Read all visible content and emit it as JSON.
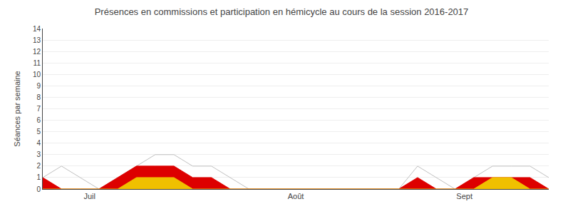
{
  "chart_data": {
    "type": "line",
    "title": "Présences en commissions et participation en hémicycle au cours de la session 2016-2017",
    "ylabel": "Séances par semaine",
    "x": [
      0,
      1,
      2,
      3,
      4,
      5,
      6,
      7,
      8,
      9,
      10,
      11,
      12,
      13,
      14,
      15,
      16,
      17,
      18,
      19,
      20,
      21,
      22,
      23,
      24,
      25,
      26,
      27
    ],
    "xlim": [
      0,
      27
    ],
    "xticks": [
      {
        "value": 2.5,
        "label": "Juil"
      },
      {
        "value": 13.5,
        "label": "Août"
      },
      {
        "value": 22.5,
        "label": "Sept"
      }
    ],
    "ylim": [
      0,
      14
    ],
    "yticks": [
      0,
      1,
      2,
      3,
      4,
      5,
      6,
      7,
      8,
      9,
      10,
      11,
      12,
      13,
      14
    ],
    "grid": true,
    "series": [
      {
        "type": "line",
        "color": "#c0c0c0",
        "values": [
          1,
          2,
          1,
          0,
          1,
          2,
          3,
          3,
          2,
          2,
          1,
          0,
          0,
          0,
          0,
          0,
          0,
          0,
          0,
          0,
          2,
          1,
          0,
          1,
          2,
          2,
          2,
          1
        ]
      },
      {
        "type": "area",
        "color": "#dd0000",
        "values": [
          1,
          0,
          0,
          0,
          1,
          2,
          2,
          2,
          1,
          1,
          0,
          0,
          0,
          0,
          0,
          0,
          0,
          0,
          0,
          0,
          1,
          0,
          0,
          1,
          1,
          1,
          1,
          0
        ]
      },
      {
        "type": "area",
        "color": "#f0c000",
        "values": [
          0,
          0,
          0,
          0,
          0,
          1,
          1,
          1,
          0,
          0,
          0,
          0,
          0,
          0,
          0,
          0,
          0,
          0,
          0,
          0,
          0,
          0,
          0,
          0,
          1,
          1,
          0,
          0
        ]
      }
    ]
  }
}
